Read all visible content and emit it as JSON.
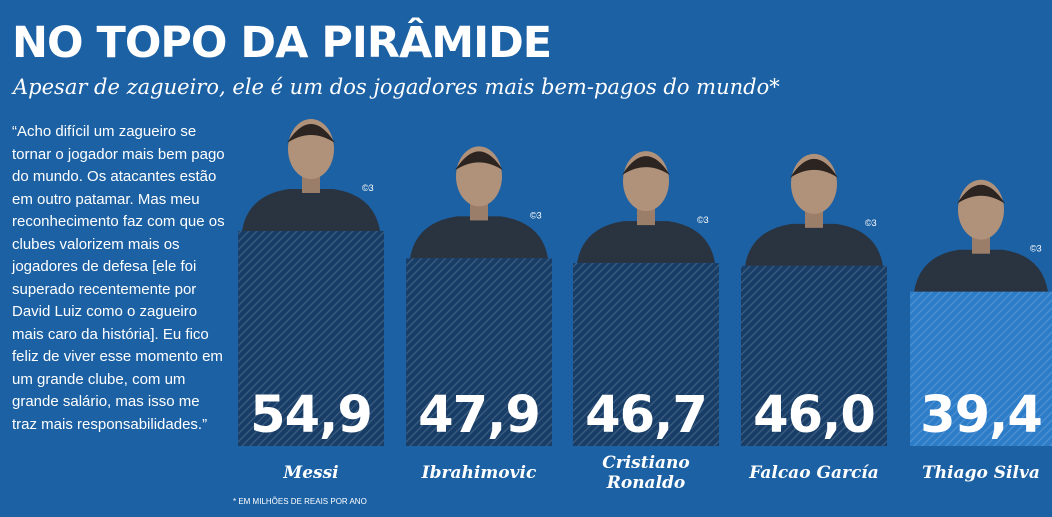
{
  "title": "NO TOPO DA PIRÂMIDE",
  "subtitle": "Apesar de zagueiro, ele é um dos jogadores mais bem-pagos do mundo*",
  "quote": "“Acho difícil um zagueiro se tornar o jogador mais bem pago do mundo. Os atacantes estão em outro patamar. Mas meu reconhecimento faz com que os clubes valorizem mais os jogadores de defesa [ele foi superado recentemente por David Luiz como o zagueiro mais caro da história]. Eu fico feliz de viver esse momento em um grande clube, com um grande salário, mas isso me traz mais responsabilidades.”",
  "footnote": "* EM MILHÕES DE REAIS POR ANO",
  "photo_credit": "©3",
  "colors": {
    "background": "#1c61a4",
    "bar": "#183e68",
    "bar_highlight": "#2c7cc8",
    "text": "#ffffff"
  },
  "chart_data": {
    "type": "bar",
    "categories": [
      "Messi",
      "Ibrahimovic",
      "Cristiano Ronaldo",
      "Falcao García",
      "Thiago Silva"
    ],
    "values": [
      54.9,
      47.9,
      46.7,
      46.0,
      39.4
    ],
    "value_labels": [
      "54,9",
      "47,9",
      "46,7",
      "46,0",
      "39,4"
    ],
    "highlighted": "Thiago Silva",
    "ylim": [
      0,
      54.9
    ]
  }
}
